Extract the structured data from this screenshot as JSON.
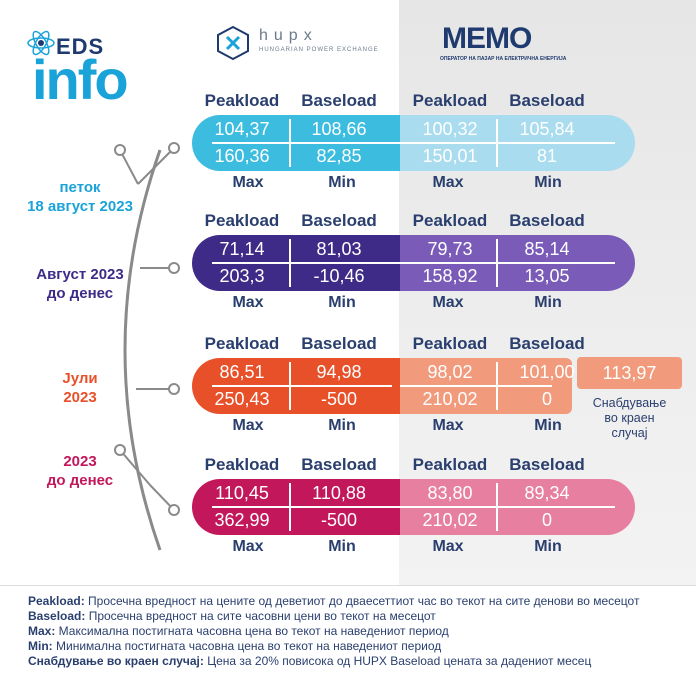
{
  "brand": {
    "eds": "EDS",
    "info": "info"
  },
  "hupx": {
    "name": "hupx",
    "subtitle": "HUNGARIAN POWER EXCHANGE"
  },
  "memo": {
    "name": "MEMO",
    "subtitle": "ОПЕРАТОР НА ПАЗАР НА ЕЛЕКТРИЧНА ЕНЕРГИЈА"
  },
  "headers": {
    "peak": "Peakload",
    "base": "Baseload"
  },
  "labels": {
    "max": "Max",
    "min": "Min"
  },
  "rows": [
    {
      "period_line1": "петок",
      "period_line2": "18 август 2023",
      "period_color": "#1aa3d9",
      "hupx_peak": "104,37",
      "hupx_base": "108,66",
      "memo_peak": "100,32",
      "memo_base": "105,84",
      "hupx_max": "160,36",
      "hupx_min": "82,85",
      "memo_max": "150,01",
      "memo_min": "81"
    },
    {
      "period_line1": "Август 2023",
      "period_line2": "до денес",
      "period_color": "#3d2b87",
      "hupx_peak": "71,14",
      "hupx_base": "81,03",
      "memo_peak": "79,73",
      "memo_base": "85,14",
      "hupx_max": "203,3",
      "hupx_min": "-10,46",
      "memo_max": "158,92",
      "memo_min": "13,05"
    },
    {
      "period_line1": "Јули",
      "period_line2": "2023",
      "period_color": "#e8502a",
      "hupx_peak": "86,51",
      "hupx_base": "94,98",
      "memo_peak": "98,02",
      "memo_base": "101,00",
      "hupx_max": "250,43",
      "hupx_min": "-500",
      "memo_max": "210,02",
      "memo_min": "0"
    },
    {
      "period_line1": "2023",
      "period_line2": "до денес",
      "period_color": "#c2185b",
      "hupx_peak": "110,45",
      "hupx_base": "110,88",
      "memo_peak": "83,80",
      "memo_base": "89,34",
      "hupx_max": "362,99",
      "hupx_min": "-500",
      "memo_max": "210,02",
      "memo_min": "0"
    }
  ],
  "extra": {
    "value": "113,97",
    "label_line1": "Снабдување",
    "label_line2": "во краен",
    "label_line3": "случај"
  },
  "legend": [
    {
      "term": "Peakload:",
      "text": " Просечна вредност на цените од деветиот до дваесеттиот час во текот на сите денови во месецот"
    },
    {
      "term": "Baseload:",
      "text": " Просечна вредност на сите часовни цени во текот на месецот"
    },
    {
      "term": "Max:",
      "text": " Максимална постигната часовна цена во текот на наведениот период"
    },
    {
      "term": "Min:",
      "text": " Минимална постигната часовна цена во текот на наведениот период"
    },
    {
      "term": "Снабдување во краен случај:",
      "text": " Цена за 20% повисока од HUPX Baseload цената за дадениот месец"
    }
  ],
  "colors": {
    "row1_left": "#3cbde0",
    "row1_right": "#a9dcee",
    "row2_left": "#3d2b87",
    "row2_right": "#7a5cb8",
    "row3_left": "#e8502a",
    "row3_right": "#f29a7c",
    "row4_left": "#c2185b",
    "row4_right": "#e77fa1"
  }
}
